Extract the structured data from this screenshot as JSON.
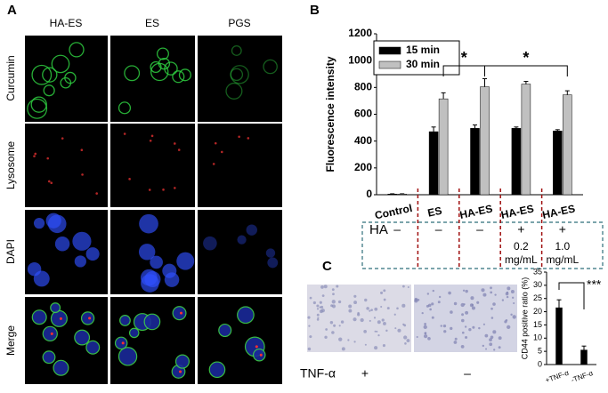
{
  "panel_a": {
    "label": "A",
    "columns": [
      "HA-ES",
      "ES",
      "PGS"
    ],
    "rows": [
      "Curcumin",
      "Lysosome",
      "DAPI",
      "Merge"
    ]
  },
  "panel_b_table": {
    "row_label": "HA",
    "signs": [
      "–",
      "–",
      "–",
      "+",
      "+"
    ],
    "concentrations": [
      {
        "value": "0.2",
        "unit": "mg/mL"
      },
      {
        "value": "1.0",
        "unit": "mg/mL"
      }
    ]
  },
  "panel_c": {
    "condition": "TNF-α",
    "signs": [
      "+",
      "–"
    ]
  },
  "chart_data": [
    {
      "type": "bar",
      "label": "B",
      "ylabel": "Fluorescence intensity",
      "categories": [
        "Control",
        "ES",
        "HA-ES",
        "HA-ES",
        "HA-ES"
      ],
      "series": [
        {
          "name": "15 min",
          "color": "#000000",
          "values": [
            5,
            470,
            495,
            495,
            475
          ],
          "errors": [
            2,
            35,
            25,
            10,
            10
          ]
        },
        {
          "name": "30 min",
          "color": "#c0c0c0",
          "values": [
            5,
            715,
            805,
            825,
            745
          ],
          "errors": [
            2,
            45,
            60,
            20,
            30
          ]
        }
      ],
      "ylim": [
        0,
        1200
      ],
      "yticks": [
        0,
        200,
        400,
        600,
        800,
        1000,
        1200
      ],
      "legend": "upper-left",
      "annotations": [
        "*",
        "*"
      ]
    },
    {
      "type": "bar",
      "label": "C",
      "ylabel": "CD44 positive ratio (%)",
      "categories": [
        "+TNF-α",
        "-TNF-α"
      ],
      "series": [
        {
          "color": "#000000",
          "values": [
            21.5,
            5.5
          ],
          "errors": [
            3,
            1.5
          ]
        }
      ],
      "ylim": [
        0,
        35
      ],
      "yticks": [
        0,
        5,
        10,
        15,
        20,
        25,
        30,
        35
      ],
      "annotations": [
        "***"
      ]
    }
  ]
}
